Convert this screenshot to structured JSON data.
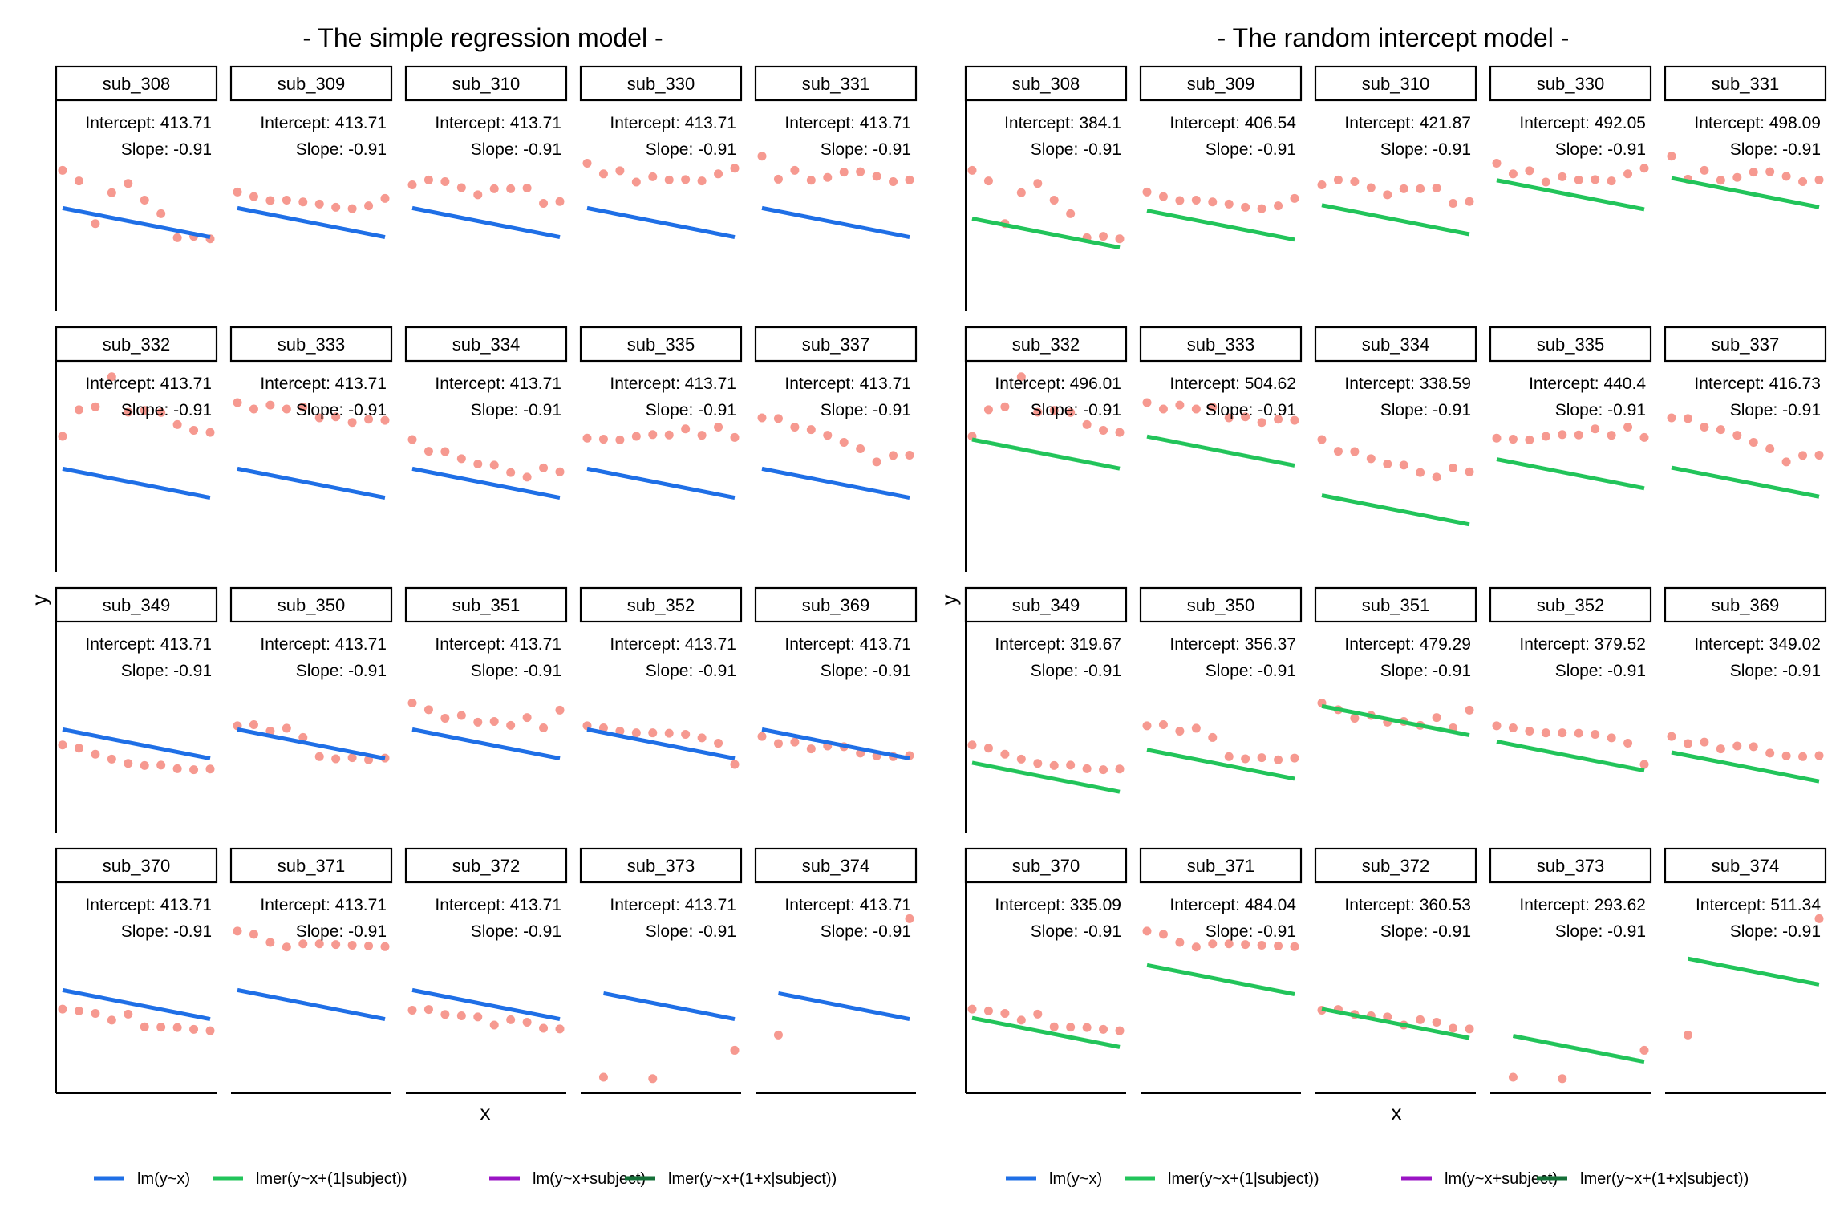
{
  "colors": {
    "lm": "#1f6fe6",
    "lmer_ri": "#22c45a",
    "lm_subject": "#9a14c4",
    "lmer_rs": "#157038",
    "points": "#f4877d"
  },
  "legend": [
    {
      "label": "lm(y~x)",
      "color": "#1f6fe6"
    },
    {
      "label": "lmer(y~x+(1|subject))",
      "color": "#22c45a"
    },
    {
      "label": "lm(y~x+subject)",
      "color": "#9a14c4"
    },
    {
      "label": "lmer(y~x+(1+x|subject))",
      "color": "#157038"
    }
  ],
  "chart_data": [
    {
      "type": "scatter",
      "title": "- The simple regression model -",
      "xlabel": "x",
      "ylabel": "y",
      "line_color": "#1f6fe6",
      "panels": [
        {
          "subject": "sub_308",
          "intercept_label": "Intercept: 413.71",
          "slope_label": "Slope: -0.91",
          "intercept": 413.71
        },
        {
          "subject": "sub_309",
          "intercept_label": "Intercept: 413.71",
          "slope_label": "Slope: -0.91",
          "intercept": 413.71
        },
        {
          "subject": "sub_310",
          "intercept_label": "Intercept: 413.71",
          "slope_label": "Slope: -0.91",
          "intercept": 413.71
        },
        {
          "subject": "sub_330",
          "intercept_label": "Intercept: 413.71",
          "slope_label": "Slope: -0.91",
          "intercept": 413.71
        },
        {
          "subject": "sub_331",
          "intercept_label": "Intercept: 413.71",
          "slope_label": "Slope: -0.91",
          "intercept": 413.71
        },
        {
          "subject": "sub_332",
          "intercept_label": "Intercept: 413.71",
          "slope_label": "Slope: -0.91",
          "intercept": 413.71
        },
        {
          "subject": "sub_333",
          "intercept_label": "Intercept: 413.71",
          "slope_label": "Slope: -0.91",
          "intercept": 413.71
        },
        {
          "subject": "sub_334",
          "intercept_label": "Intercept: 413.71",
          "slope_label": "Slope: -0.91",
          "intercept": 413.71
        },
        {
          "subject": "sub_335",
          "intercept_label": "Intercept: 413.71",
          "slope_label": "Slope: -0.91",
          "intercept": 413.71
        },
        {
          "subject": "sub_337",
          "intercept_label": "Intercept: 413.71",
          "slope_label": "Slope: -0.91",
          "intercept": 413.71
        },
        {
          "subject": "sub_349",
          "intercept_label": "Intercept: 413.71",
          "slope_label": "Slope: -0.91",
          "intercept": 413.71
        },
        {
          "subject": "sub_350",
          "intercept_label": "Intercept: 413.71",
          "slope_label": "Slope: -0.91",
          "intercept": 413.71
        },
        {
          "subject": "sub_351",
          "intercept_label": "Intercept: 413.71",
          "slope_label": "Slope: -0.91",
          "intercept": 413.71
        },
        {
          "subject": "sub_352",
          "intercept_label": "Intercept: 413.71",
          "slope_label": "Slope: -0.91",
          "intercept": 413.71
        },
        {
          "subject": "sub_369",
          "intercept_label": "Intercept: 413.71",
          "slope_label": "Slope: -0.91",
          "intercept": 413.71
        },
        {
          "subject": "sub_370",
          "intercept_label": "Intercept: 413.71",
          "slope_label": "Slope: -0.91",
          "intercept": 413.71
        },
        {
          "subject": "sub_371",
          "intercept_label": "Intercept: 413.71",
          "slope_label": "Slope: -0.91",
          "intercept": 413.71
        },
        {
          "subject": "sub_372",
          "intercept_label": "Intercept: 413.71",
          "slope_label": "Slope: -0.91",
          "intercept": 413.71
        },
        {
          "subject": "sub_373",
          "intercept_label": "Intercept: 413.71",
          "slope_label": "Slope: -0.91",
          "intercept": 413.71
        },
        {
          "subject": "sub_374",
          "intercept_label": "Intercept: 413.71",
          "slope_label": "Slope: -0.91",
          "intercept": 413.71
        }
      ]
    },
    {
      "type": "scatter",
      "title": "- The random intercept model -",
      "xlabel": "x",
      "ylabel": "y",
      "line_color": "#22c45a",
      "panels": [
        {
          "subject": "sub_308",
          "intercept_label": "Intercept: 384.1",
          "slope_label": "Slope: -0.91",
          "intercept": 384.1
        },
        {
          "subject": "sub_309",
          "intercept_label": "Intercept: 406.54",
          "slope_label": "Slope: -0.91",
          "intercept": 406.54
        },
        {
          "subject": "sub_310",
          "intercept_label": "Intercept: 421.87",
          "slope_label": "Slope: -0.91",
          "intercept": 421.87
        },
        {
          "subject": "sub_330",
          "intercept_label": "Intercept: 492.05",
          "slope_label": "Slope: -0.91",
          "intercept": 492.05
        },
        {
          "subject": "sub_331",
          "intercept_label": "Intercept: 498.09",
          "slope_label": "Slope: -0.91",
          "intercept": 498.09
        },
        {
          "subject": "sub_332",
          "intercept_label": "Intercept: 496.01",
          "slope_label": "Slope: -0.91",
          "intercept": 496.01
        },
        {
          "subject": "sub_333",
          "intercept_label": "Intercept: 504.62",
          "slope_label": "Slope: -0.91",
          "intercept": 504.62
        },
        {
          "subject": "sub_334",
          "intercept_label": "Intercept: 338.59",
          "slope_label": "Slope: -0.91",
          "intercept": 338.59
        },
        {
          "subject": "sub_335",
          "intercept_label": "Intercept: 440.4",
          "slope_label": "Slope: -0.91",
          "intercept": 440.4
        },
        {
          "subject": "sub_337",
          "intercept_label": "Intercept: 416.73",
          "slope_label": "Slope: -0.91",
          "intercept": 416.73
        },
        {
          "subject": "sub_349",
          "intercept_label": "Intercept: 319.67",
          "slope_label": "Slope: -0.91",
          "intercept": 319.67
        },
        {
          "subject": "sub_350",
          "intercept_label": "Intercept: 356.37",
          "slope_label": "Slope: -0.91",
          "intercept": 356.37
        },
        {
          "subject": "sub_351",
          "intercept_label": "Intercept: 479.29",
          "slope_label": "Slope: -0.91",
          "intercept": 479.29
        },
        {
          "subject": "sub_352",
          "intercept_label": "Intercept: 379.52",
          "slope_label": "Slope: -0.91",
          "intercept": 379.52
        },
        {
          "subject": "sub_369",
          "intercept_label": "Intercept: 349.02",
          "slope_label": "Slope: -0.91",
          "intercept": 349.02
        },
        {
          "subject": "sub_370",
          "intercept_label": "Intercept: 335.09",
          "slope_label": "Slope: -0.91",
          "intercept": 335.09
        },
        {
          "subject": "sub_371",
          "intercept_label": "Intercept: 484.04",
          "slope_label": "Slope: -0.91",
          "intercept": 484.04
        },
        {
          "subject": "sub_372",
          "intercept_label": "Intercept: 360.53",
          "slope_label": "Slope: -0.91",
          "intercept": 360.53
        },
        {
          "subject": "sub_373",
          "intercept_label": "Intercept: 293.62",
          "slope_label": "Slope: -0.91",
          "intercept": 293.62
        },
        {
          "subject": "sub_374",
          "intercept_label": "Intercept: 511.34",
          "slope_label": "Slope: -0.91",
          "intercept": 511.34
        }
      ]
    }
  ],
  "observations": {
    "x": [
      0,
      1,
      2,
      3,
      4,
      5,
      6,
      7,
      8,
      9
    ],
    "slope": -0.91,
    "ylim": [
      150,
      600
    ],
    "xlim": [
      0,
      9
    ],
    "subjects": {
      "sub_308": [
        520,
        490,
        370,
        457,
        483,
        436,
        398,
        330,
        334,
        327
      ],
      "sub_309": [
        459,
        446,
        435,
        436,
        431,
        425,
        416,
        412,
        420,
        441
      ],
      "sub_310": [
        479,
        493,
        488,
        471,
        451,
        468,
        468,
        470,
        427,
        432
      ],
      "sub_330": [
        540,
        510,
        519,
        487,
        502,
        493,
        494,
        490,
        510,
        526
      ],
      "sub_331": [
        560,
        495,
        520,
        492,
        500,
        515,
        516,
        503,
        488,
        493
      ],
      "sub_332": [
        505,
        580,
        588,
        673,
        573,
        578,
        572,
        538,
        522,
        516
      ],
      "sub_333": [
        600,
        582,
        593,
        582,
        587,
        557,
        560,
        544,
        553,
        550
      ],
      "sub_334": [
        496,
        463,
        462,
        442,
        427,
        424,
        403,
        390,
        416,
        405
      ],
      "sub_335": [
        500,
        497,
        495,
        505,
        510,
        509,
        526,
        508,
        531,
        502
      ],
      "sub_337": [
        557,
        555,
        531,
        524,
        508,
        488,
        470,
        433,
        451,
        452
      ],
      "sub_349": [
        370,
        361,
        344,
        330,
        318,
        312,
        313,
        303,
        300,
        302
      ],
      "sub_350": [
        424,
        427,
        409,
        417,
        391,
        337,
        331,
        334,
        328,
        333
      ],
      "sub_351": [
        488,
        469,
        445,
        453,
        434,
        436,
        425,
        447,
        418,
        468
      ],
      "sub_352": [
        424,
        418,
        409,
        404,
        404,
        403,
        400,
        390,
        375,
        315
      ],
      "sub_369": [
        394,
        374,
        378,
        359,
        367,
        365,
        347,
        339,
        337,
        340
      ],
      "sub_370": [
        360,
        355,
        348,
        329,
        346,
        310,
        309,
        308,
        303,
        299
      ],
      "sub_371": [
        580,
        571,
        548,
        535,
        544,
        544,
        542,
        540,
        538,
        536
      ],
      "sub_372": [
        357,
        359,
        345,
        341,
        338,
        315,
        330,
        323,
        306,
        304
      ],
      "sub_373": [
        null,
        168,
        null,
        null,
        164,
        null,
        null,
        null,
        null,
        244
      ],
      "sub_374": [
        null,
        287,
        null,
        null,
        null,
        null,
        null,
        null,
        null,
        615
      ]
    }
  }
}
